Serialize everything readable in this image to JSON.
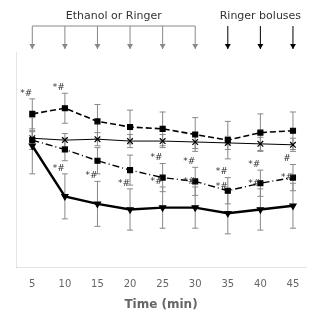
{
  "chart_data": {
    "type": "line",
    "x": [
      5,
      10,
      15,
      20,
      25,
      30,
      35,
      40,
      45
    ],
    "xlim": [
      2.5,
      47
    ],
    "xticks": [
      5,
      10,
      15,
      20,
      25,
      30,
      35,
      40,
      45
    ],
    "ylim": [
      -1.0,
      10.5
    ],
    "xlabel": "Time (min)",
    "grid": false,
    "tick_labels": "x",
    "series": [
      {
        "color": "#000000",
        "marker": "square",
        "line_style": "dashed",
        "values": [
          7.2,
          7.5,
          6.8,
          6.5,
          6.4,
          6.1,
          5.8,
          6.2,
          6.3
        ],
        "errors": [
          0.8,
          0.8,
          0.9,
          0.9,
          0.9,
          0.9,
          1.0,
          1.0,
          1.0
        ],
        "point_labels": [
          "*#",
          "*#",
          null,
          null,
          null,
          null,
          null,
          null,
          null
        ]
      },
      {
        "color": "#000000",
        "marker": "x",
        "line_style": "solid",
        "values": [
          5.9,
          5.8,
          5.85,
          5.75,
          5.75,
          5.7,
          5.65,
          5.6,
          5.55
        ],
        "errors": [
          0.35,
          0.35,
          0.35,
          0.35,
          0.35,
          0.35,
          0.35,
          0.35,
          0.35
        ]
      },
      {
        "color": "#000000",
        "marker": "square",
        "line_style": "dashdot",
        "values": [
          5.8,
          5.3,
          4.7,
          4.2,
          3.8,
          3.6,
          3.1,
          3.5,
          3.8
        ],
        "errors": [
          0.5,
          0.6,
          0.7,
          0.8,
          0.75,
          0.75,
          0.7,
          0.7,
          0.7
        ],
        "point_labels": [
          null,
          null,
          null,
          null,
          "*#",
          "*#",
          "*#",
          "*#",
          "#"
        ]
      },
      {
        "color": "#000000",
        "marker": "triangle_down",
        "line_style": "solid",
        "values": [
          5.5,
          2.8,
          2.4,
          2.1,
          2.2,
          2.2,
          1.9,
          2.1,
          2.3
        ],
        "errors": [
          1.5,
          1.2,
          1.2,
          1.1,
          1.1,
          1.1,
          1.1,
          1.1,
          1.2
        ],
        "point_labels": [
          null,
          "*#",
          "*#",
          "*#",
          "*#",
          "*#",
          "*#",
          "*#",
          "*#"
        ]
      }
    ],
    "annotations": [
      {
        "text": "Ethanol or Ringer",
        "arrows_x": [
          5,
          10,
          15,
          20,
          25,
          30
        ]
      },
      {
        "text": "Ringer boluses",
        "arrows_x": [
          35,
          40,
          45
        ]
      }
    ]
  }
}
